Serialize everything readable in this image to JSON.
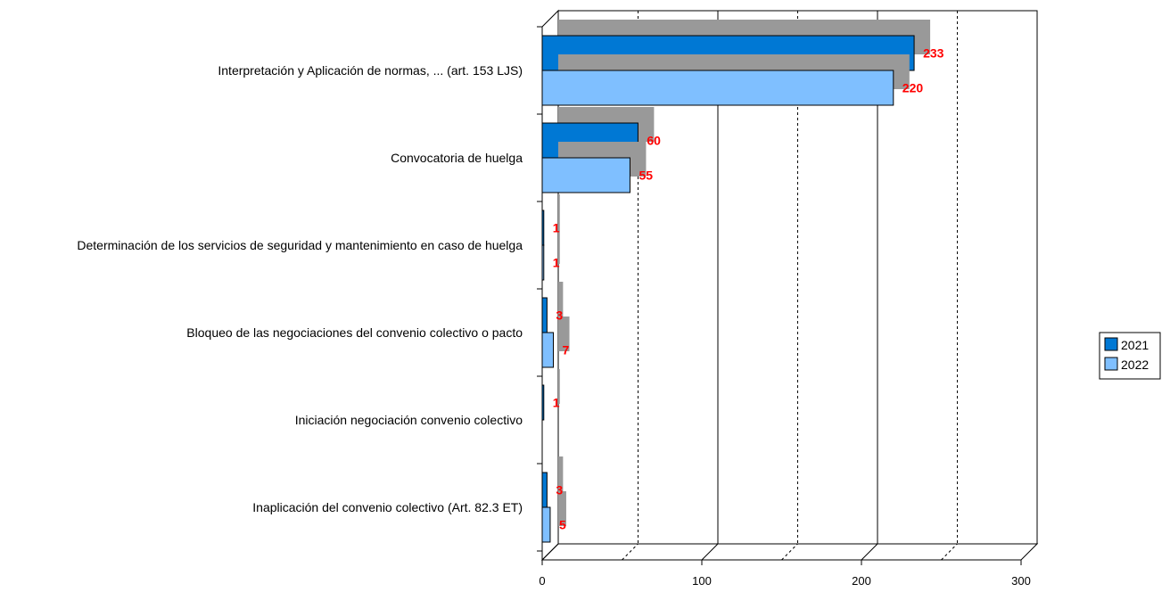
{
  "chart_data": {
    "type": "bar",
    "orientation": "horizontal",
    "three_d": true,
    "categories": [
      "Interpretación y Aplicación de normas, ... (art. 153 LJS)",
      "Convocatoria de huelga",
      "Determinación de los servicios de seguridad y mantenimiento en caso de huelga",
      "Bloqueo de las negociaciones del convenio colectivo  o pacto",
      "Iniciación negociación convenio colectivo",
      "Inaplicación del convenio colectivo (Art. 82.3 ET)"
    ],
    "series": [
      {
        "name": "2021",
        "color": "#0078d4",
        "values": [
          233,
          60,
          1,
          3,
          1,
          3
        ]
      },
      {
        "name": "2022",
        "color": "#7fbfff",
        "values": [
          220,
          55,
          1,
          7,
          null,
          5
        ]
      }
    ],
    "xlim": [
      0,
      300
    ],
    "xticks": [
      0,
      100,
      200,
      300
    ],
    "grid": "vertical, dashed",
    "legend": "right",
    "data_label_color": "#ff0000",
    "shadow_color": "#999999"
  }
}
